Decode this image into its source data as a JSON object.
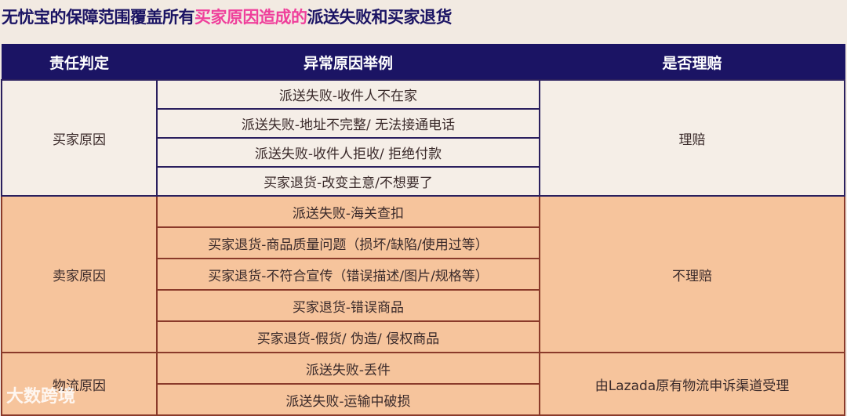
{
  "title": {
    "pre": "无忧宝的保障范围覆盖所有",
    "highlight": "买家原因造成的",
    "post": "派送失败和买家退货"
  },
  "headers": [
    "责任判定",
    "异常原因举例",
    "是否理赔"
  ],
  "groups": [
    {
      "responsibility": "买家原因",
      "claim": "理赔",
      "reasons": [
        "派送失败-收件人不在家",
        "派送失败-地址不完整/ 无法接通电话",
        "派送失败-收件人拒收/ 拒绝付款",
        "买家退货-改变主意/不想要了"
      ]
    },
    {
      "responsibility": "卖家原因",
      "claim": "不理赔",
      "reasons": [
        "派送失败-海关查扣",
        "买家退货-商品质量问题（损坏/缺陷/使用过等）",
        "买家退货-不符合宣传（错误描述/图片/规格等）",
        "买家退货-错误商品",
        "买家退货-假货/ 伪造/ 侵权商品"
      ]
    },
    {
      "responsibility": "物流原因",
      "claim": "由Lazada原有物流申诉渠道受理",
      "reasons": [
        "派送失败-丢件",
        "派送失败-运输中破损"
      ]
    }
  ],
  "watermark": "大数跨境"
}
